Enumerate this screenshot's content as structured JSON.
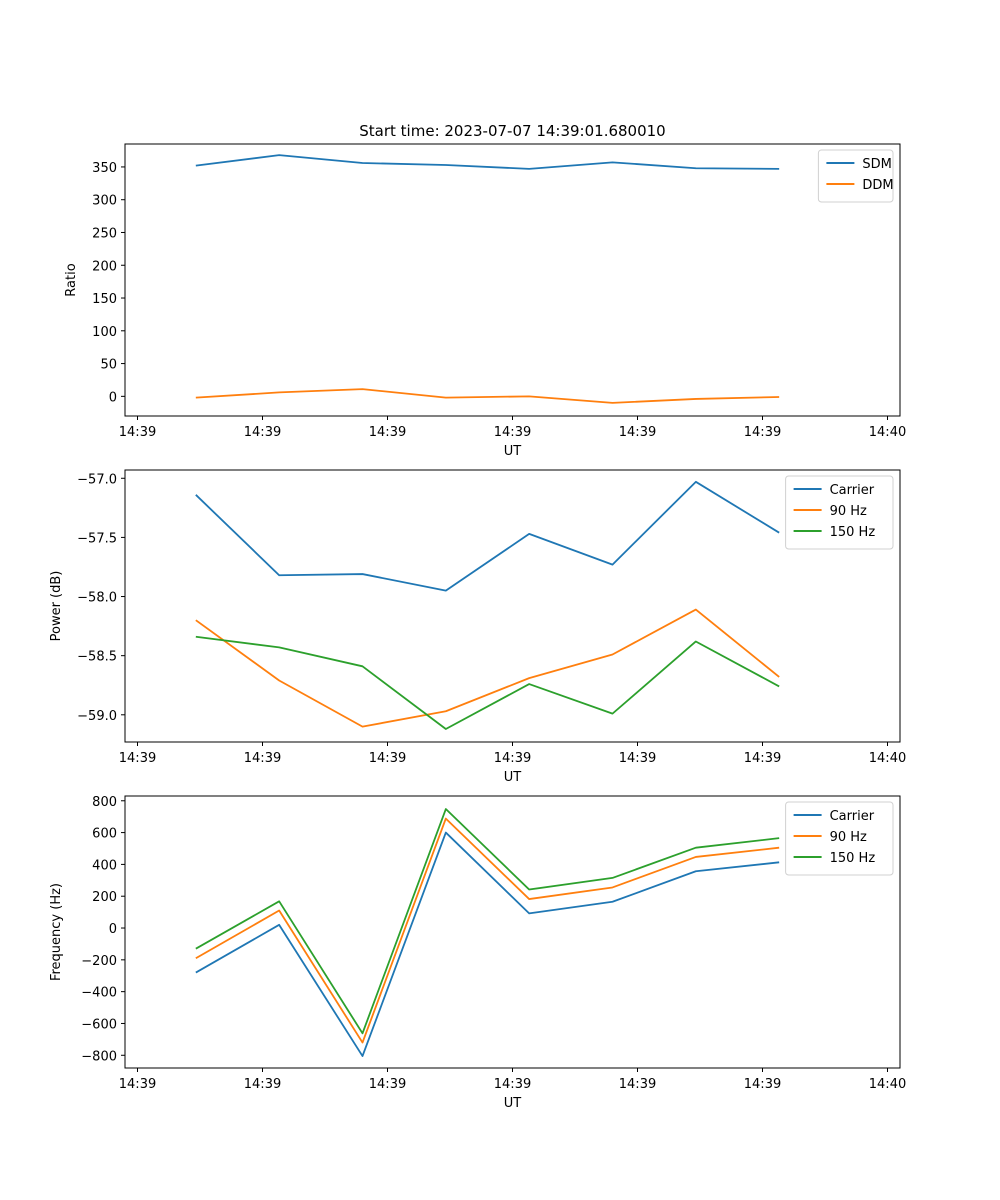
{
  "chart_data": [
    {
      "type": "line",
      "title": "Start time: 2023-07-07 14:39:01.680010",
      "xlabel": "UT",
      "ylabel": "Ratio",
      "xlim": [
        0,
        9.3
      ],
      "ylim": [
        -30,
        385
      ],
      "xticks": [
        0.15,
        1.65,
        3.15,
        4.65,
        6.15,
        7.65,
        9.15
      ],
      "xticklabels": [
        "14:39",
        "14:39",
        "14:39",
        "14:39",
        "14:39",
        "14:39",
        "14:40"
      ],
      "yticks": [
        0,
        50,
        100,
        150,
        200,
        250,
        300,
        350
      ],
      "yticklabels": [
        "0",
        "50",
        "100",
        "150",
        "200",
        "250",
        "300",
        "350"
      ],
      "legend_position": "top-right",
      "x": [
        0.85,
        1.85,
        2.85,
        3.85,
        4.85,
        5.85,
        6.85,
        7.85
      ],
      "series": [
        {
          "name": "SDM",
          "color": "#1f77b4",
          "values": [
            352,
            368,
            356,
            353,
            347,
            357,
            348,
            347
          ]
        },
        {
          "name": "DDM",
          "color": "#ff7f0e",
          "values": [
            -2,
            6,
            11,
            -2,
            0,
            -10,
            -4,
            -1
          ]
        }
      ]
    },
    {
      "type": "line",
      "title": "",
      "xlabel": "UT",
      "ylabel": "Power (dB)",
      "xlim": [
        0,
        9.3
      ],
      "ylim": [
        -59.23,
        -56.93
      ],
      "xticks": [
        0.15,
        1.65,
        3.15,
        4.65,
        6.15,
        7.65,
        9.15
      ],
      "xticklabels": [
        "14:39",
        "14:39",
        "14:39",
        "14:39",
        "14:39",
        "14:39",
        "14:40"
      ],
      "yticks": [
        -59.0,
        -58.5,
        -58.0,
        -57.5,
        -57.0
      ],
      "yticklabels": [
        "−59.0",
        "−58.5",
        "−58.0",
        "−57.5",
        "−57.0"
      ],
      "legend_position": "top-right",
      "x": [
        0.85,
        1.85,
        2.85,
        3.85,
        4.85,
        5.85,
        6.85,
        7.85
      ],
      "series": [
        {
          "name": "Carrier",
          "color": "#1f77b4",
          "values": [
            -57.14,
            -57.82,
            -57.81,
            -57.95,
            -57.47,
            -57.73,
            -57.03,
            -57.46
          ]
        },
        {
          "name": "90 Hz",
          "color": "#ff7f0e",
          "values": [
            -58.2,
            -58.71,
            -59.1,
            -58.97,
            -58.69,
            -58.49,
            -58.11,
            -58.68
          ]
        },
        {
          "name": "150 Hz",
          "color": "#2ca02c",
          "values": [
            -58.34,
            -58.43,
            -58.59,
            -59.12,
            -58.74,
            -58.99,
            -58.38,
            -58.76
          ]
        }
      ]
    },
    {
      "type": "line",
      "title": "",
      "xlabel": "UT",
      "ylabel": "Frequency (Hz)",
      "xlim": [
        0,
        9.3
      ],
      "ylim": [
        -880,
        830
      ],
      "xticks": [
        0.15,
        1.65,
        3.15,
        4.65,
        6.15,
        7.65,
        9.15
      ],
      "xticklabels": [
        "14:39",
        "14:39",
        "14:39",
        "14:39",
        "14:39",
        "14:39",
        "14:40"
      ],
      "yticks": [
        -800,
        -600,
        -400,
        -200,
        0,
        200,
        400,
        600,
        800
      ],
      "yticklabels": [
        "−800",
        "−600",
        "−400",
        "−200",
        "0",
        "200",
        "400",
        "600",
        "800"
      ],
      "legend_position": "top-right",
      "x": [
        0.85,
        1.85,
        2.85,
        3.85,
        4.85,
        5.85,
        6.85,
        7.85
      ],
      "series": [
        {
          "name": "Carrier",
          "color": "#1f77b4",
          "values": [
            -280,
            20,
            -805,
            600,
            92,
            165,
            357,
            413
          ]
        },
        {
          "name": "90 Hz",
          "color": "#ff7f0e",
          "values": [
            -190,
            110,
            -720,
            688,
            182,
            255,
            447,
            505
          ]
        },
        {
          "name": "150 Hz",
          "color": "#2ca02c",
          "values": [
            -130,
            168,
            -662,
            748,
            242,
            315,
            505,
            565
          ]
        }
      ]
    }
  ]
}
